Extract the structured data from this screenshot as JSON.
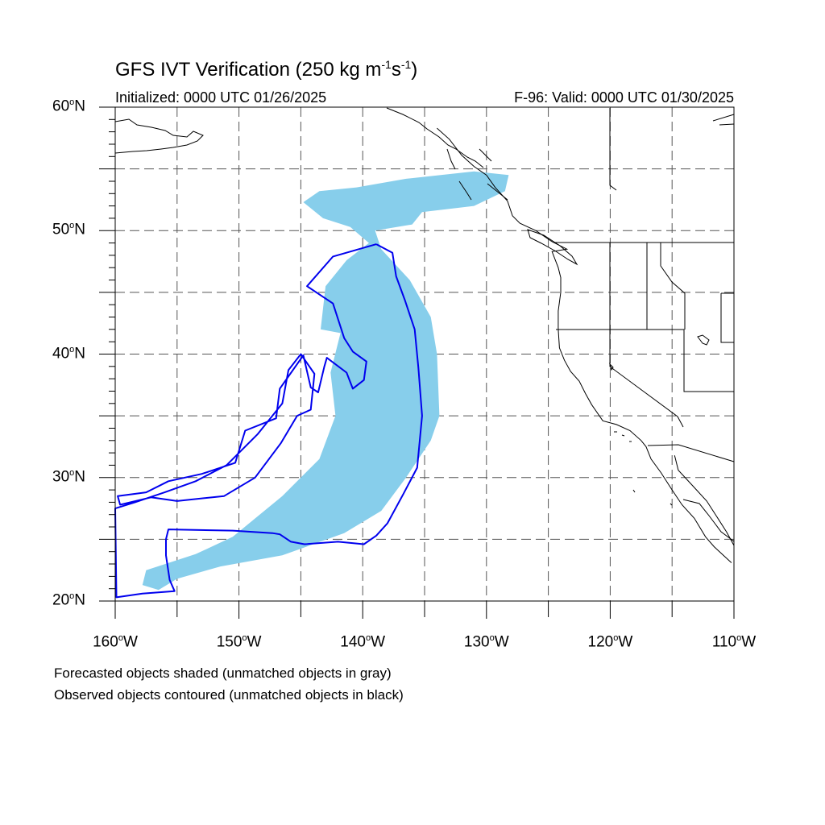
{
  "title": {
    "main": "GFS IVT Verification (250 kg m",
    "sup1": "-1",
    "mid": "s",
    "sup2": "-1",
    "end": ")"
  },
  "initialized": "Initialized: 0000 UTC 01/26/2025",
  "valid": "F-96: Valid: 0000 UTC 01/30/2025",
  "lat_labels": [
    {
      "deg": "60",
      "hem": "N",
      "value": 60
    },
    {
      "deg": "50",
      "hem": "N",
      "value": 50
    },
    {
      "deg": "40",
      "hem": "N",
      "value": 40
    },
    {
      "deg": "30",
      "hem": "N",
      "value": 30
    },
    {
      "deg": "20",
      "hem": "N",
      "value": 20
    }
  ],
  "lon_labels": [
    {
      "deg": "160",
      "hem": "W",
      "value": -160
    },
    {
      "deg": "150",
      "hem": "W",
      "value": -150
    },
    {
      "deg": "140",
      "hem": "W",
      "value": -140
    },
    {
      "deg": "130",
      "hem": "W",
      "value": -130
    },
    {
      "deg": "120",
      "hem": "W",
      "value": -120
    },
    {
      "deg": "110",
      "hem": "W",
      "value": -110
    }
  ],
  "notes": [
    "Forecasted objects shaded (unmatched objects in gray)",
    "Observed objects contoured (unmatched objects in black)"
  ],
  "colors": {
    "forecast_fill": "#87ceeb",
    "observed_contour": "#0000ee",
    "coast": "#000000"
  },
  "map_extent": {
    "lon": [
      -160,
      -110
    ],
    "lat": [
      20,
      60
    ],
    "grid_spacing_deg": 5
  },
  "forecast_object_lonlat": [
    [
      -131.0,
      54.8
    ],
    [
      -128.2,
      54.5
    ],
    [
      -128.5,
      53.2
    ],
    [
      -131.0,
      52.0
    ],
    [
      -135.2,
      51.5
    ],
    [
      -136.0,
      50.5
    ],
    [
      -139.0,
      50.0
    ],
    [
      -138.5,
      48.5
    ],
    [
      -136.2,
      46.0
    ],
    [
      -134.5,
      43.0
    ],
    [
      -134.0,
      40.0
    ],
    [
      -133.8,
      35.0
    ],
    [
      -134.5,
      33.0
    ],
    [
      -136.5,
      30.0
    ],
    [
      -138.5,
      27.3
    ],
    [
      -141.5,
      25.5
    ],
    [
      -146.5,
      23.7
    ],
    [
      -151.5,
      22.8
    ],
    [
      -155.0,
      21.8
    ],
    [
      -156.5,
      20.9
    ],
    [
      -157.8,
      21.3
    ],
    [
      -157.5,
      22.5
    ],
    [
      -153.5,
      23.8
    ],
    [
      -150.5,
      25.2
    ],
    [
      -146.5,
      28.5
    ],
    [
      -143.5,
      31.5
    ],
    [
      -142.2,
      35.0
    ],
    [
      -142.6,
      38.5
    ],
    [
      -141.8,
      41.7
    ],
    [
      -143.4,
      42.0
    ],
    [
      -143.0,
      45.5
    ],
    [
      -141.3,
      47.6
    ],
    [
      -139.5,
      49.0
    ],
    [
      -141.0,
      50.3
    ],
    [
      -143.2,
      51.0
    ],
    [
      -144.8,
      52.3
    ],
    [
      -143.5,
      53.2
    ],
    [
      -140.5,
      53.5
    ],
    [
      -136.5,
      54.2
    ]
  ],
  "observed_object_lonlat": [
    [
      -138.9,
      48.9
    ],
    [
      -142.4,
      47.9
    ],
    [
      -144.5,
      45.5
    ],
    [
      -142.4,
      44.1
    ],
    [
      -141.5,
      41.3
    ],
    [
      -140.8,
      40.2
    ],
    [
      -139.7,
      39.4
    ],
    [
      -139.9,
      37.9
    ],
    [
      -140.8,
      37.2
    ],
    [
      -141.3,
      38.5
    ],
    [
      -142.9,
      39.7
    ],
    [
      -143.1,
      39.0
    ],
    [
      -143.6,
      36.9
    ],
    [
      -144.2,
      37.3
    ],
    [
      -144.8,
      39.9
    ],
    [
      -146.7,
      37.2
    ],
    [
      -147.0,
      34.8
    ],
    [
      -149.5,
      33.8
    ],
    [
      -150.3,
      31.2
    ],
    [
      -153.0,
      30.3
    ],
    [
      -155.7,
      29.7
    ],
    [
      -157.5,
      28.8
    ],
    [
      -159.8,
      28.5
    ],
    [
      -159.6,
      27.8
    ],
    [
      -157.1,
      28.4
    ],
    [
      -155.0,
      28.1
    ],
    [
      -151.2,
      28.5
    ],
    [
      -148.7,
      30.0
    ],
    [
      -146.6,
      32.8
    ],
    [
      -145.3,
      35.0
    ],
    [
      -144.2,
      35.5
    ],
    [
      -143.9,
      38.4
    ],
    [
      -145.0,
      40.0
    ],
    [
      -146.0,
      38.7
    ],
    [
      -146.5,
      36.0
    ],
    [
      -148.5,
      33.5
    ],
    [
      -151.0,
      31.0
    ],
    [
      -153.5,
      29.7
    ],
    [
      -156.0,
      28.8
    ],
    [
      -158.4,
      28.0
    ],
    [
      -160.0,
      27.5
    ],
    [
      -159.9,
      20.3
    ],
    [
      -157.8,
      20.6
    ],
    [
      -155.2,
      20.8
    ],
    [
      -155.6,
      21.7
    ],
    [
      -155.9,
      23.7
    ],
    [
      -155.9,
      25.0
    ],
    [
      -155.7,
      25.8
    ],
    [
      -150.5,
      25.7
    ],
    [
      -147.3,
      25.5
    ],
    [
      -146.7,
      25.4
    ],
    [
      -145.8,
      24.8
    ],
    [
      -144.7,
      24.6
    ],
    [
      -142.0,
      24.8
    ],
    [
      -139.9,
      24.6
    ],
    [
      -138.9,
      25.3
    ],
    [
      -138.0,
      26.3
    ],
    [
      -136.7,
      28.7
    ],
    [
      -135.6,
      30.8
    ],
    [
      -135.2,
      35.0
    ],
    [
      -135.5,
      38.9
    ],
    [
      -135.8,
      42.0
    ],
    [
      -136.6,
      44.4
    ],
    [
      -137.3,
      46.3
    ],
    [
      -137.6,
      48.2
    ],
    [
      -138.9,
      48.9
    ]
  ],
  "coastline_lonlat": [
    [
      -134.0,
      58.3
    ],
    [
      -133.0,
      57.4
    ],
    [
      -132.0,
      56.1
    ],
    [
      -131.0,
      55.2
    ],
    [
      -130.0,
      54.5
    ],
    [
      -129.3,
      53.5
    ],
    [
      -128.3,
      52.4
    ],
    [
      -127.9,
      51.2
    ],
    [
      -127.3,
      50.6
    ],
    [
      -126.0,
      50.0
    ],
    [
      -124.7,
      49.1
    ],
    [
      -123.5,
      48.5
    ],
    [
      -124.7,
      48.3
    ],
    [
      -124.2,
      47.0
    ],
    [
      -124.0,
      46.2
    ],
    [
      -124.0,
      45.0
    ],
    [
      -124.2,
      43.5
    ],
    [
      -124.2,
      42.0
    ],
    [
      -124.1,
      40.5
    ],
    [
      -123.7,
      39.5
    ],
    [
      -123.2,
      38.6
    ],
    [
      -122.5,
      37.8
    ],
    [
      -122.0,
      36.8
    ],
    [
      -121.5,
      35.9
    ],
    [
      -120.6,
      34.6
    ],
    [
      -119.5,
      34.3
    ],
    [
      -118.4,
      33.8
    ],
    [
      -117.5,
      33.0
    ],
    [
      -117.1,
      32.5
    ],
    [
      -116.7,
      31.5
    ],
    [
      -115.9,
      30.4
    ],
    [
      -115.0,
      29.0
    ],
    [
      -114.2,
      27.8
    ],
    [
      -113.2,
      26.7
    ],
    [
      -112.3,
      25.2
    ],
    [
      -111.6,
      24.4
    ],
    [
      -110.2,
      23.1
    ]
  ],
  "gulf_coast_lonlat": [
    [
      -114.8,
      31.8
    ],
    [
      -114.5,
      30.6
    ],
    [
      -113.3,
      29.3
    ],
    [
      -112.2,
      28.1
    ],
    [
      -111.3,
      26.7
    ],
    [
      -110.6,
      25.6
    ],
    [
      -110.0,
      24.5
    ]
  ]
}
